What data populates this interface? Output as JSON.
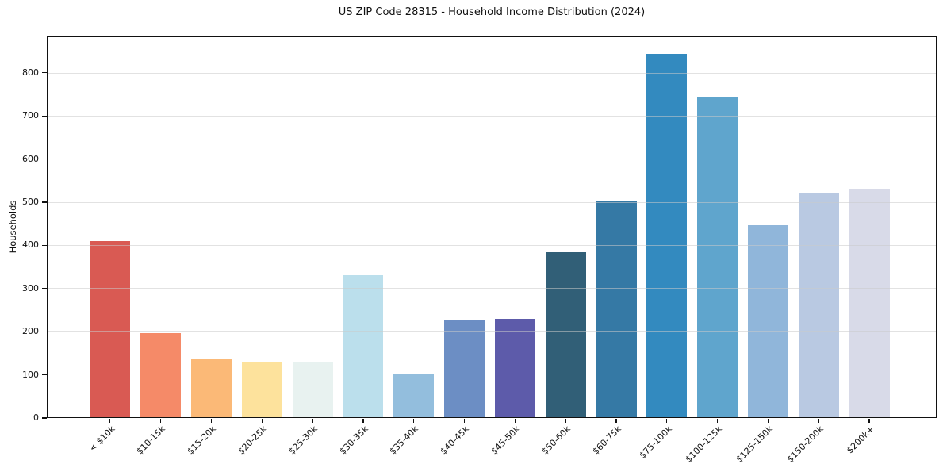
{
  "title": "US ZIP Code 28315 - Household Income Distribution (2024)",
  "chart_data": {
    "type": "bar",
    "title": "US ZIP Code 28315 - Household Income Distribution (2024)",
    "xlabel": "",
    "ylabel": "Households",
    "categories": [
      "< $10k",
      "$10-15k",
      "$15-20k",
      "$20-25k",
      "$25-30k",
      "$30-35k",
      "$35-40k",
      "$40-45k",
      "$45-50k",
      "$50-60k",
      "$60-75k",
      "$75-100k",
      "$100-125k",
      "$125-150k",
      "$150-200k",
      "$200k+"
    ],
    "values": [
      409,
      196,
      134,
      130,
      129,
      330,
      102,
      225,
      228,
      383,
      502,
      845,
      745,
      447,
      523,
      532
    ],
    "bar_colors": [
      "#d95a53",
      "#f58a68",
      "#fbb977",
      "#fde29c",
      "#e8f2f0",
      "#bbdfec",
      "#93bedd",
      "#6c8ec4",
      "#5d5baa",
      "#315f77",
      "#3579a5",
      "#338abf",
      "#5fa5cd",
      "#90b6da",
      "#b9c9e2",
      "#d8dae8"
    ],
    "yticks": [
      0,
      100,
      200,
      300,
      400,
      500,
      600,
      700,
      800
    ],
    "ylim": [
      0,
      884
    ],
    "grid": "horizontal",
    "legend": "none",
    "background_color": "#ffffff",
    "spine_color": "#111111",
    "gridline_color": "#cbcbcb"
  }
}
